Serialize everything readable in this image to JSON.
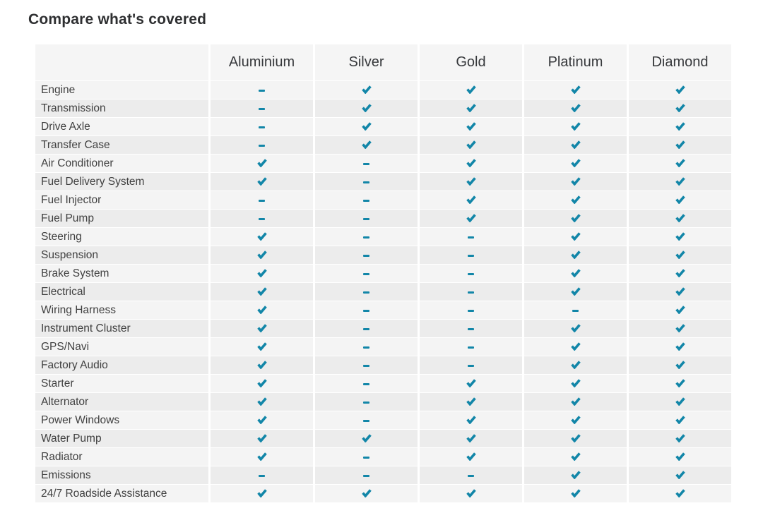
{
  "page": {
    "title": "Compare what's covered"
  },
  "colors": {
    "accent_teal": "#1286a8",
    "row_stripe_light": "#f4f4f4",
    "row_stripe_dark": "#ececec",
    "header_bg": "#f5f5f5",
    "title_text": "#2e2f31",
    "header_text": "#36383b",
    "label_text": "#404040"
  },
  "icons": {
    "covered": "check-icon",
    "not_covered": "dash-icon",
    "covered_glyph": "✔",
    "not_covered_glyph": "-"
  },
  "table": {
    "corner_label": "",
    "plans": [
      "Aluminium",
      "Silver",
      "Gold",
      "Platinum",
      "Diamond"
    ],
    "rows": [
      {
        "label": "Engine",
        "covered": [
          false,
          true,
          true,
          true,
          true
        ]
      },
      {
        "label": "Transmission",
        "covered": [
          false,
          true,
          true,
          true,
          true
        ]
      },
      {
        "label": "Drive Axle",
        "covered": [
          false,
          true,
          true,
          true,
          true
        ]
      },
      {
        "label": "Transfer Case",
        "covered": [
          false,
          true,
          true,
          true,
          true
        ]
      },
      {
        "label": "Air Conditioner",
        "covered": [
          true,
          false,
          true,
          true,
          true
        ]
      },
      {
        "label": "Fuel Delivery System",
        "covered": [
          true,
          false,
          true,
          true,
          true
        ]
      },
      {
        "label": "Fuel Injector",
        "covered": [
          false,
          false,
          true,
          true,
          true
        ]
      },
      {
        "label": "Fuel Pump",
        "covered": [
          false,
          false,
          true,
          true,
          true
        ]
      },
      {
        "label": "Steering",
        "covered": [
          true,
          false,
          false,
          true,
          true
        ]
      },
      {
        "label": "Suspension",
        "covered": [
          true,
          false,
          false,
          true,
          true
        ]
      },
      {
        "label": "Brake System",
        "covered": [
          true,
          false,
          false,
          true,
          true
        ]
      },
      {
        "label": "Electrical",
        "covered": [
          true,
          false,
          false,
          true,
          true
        ]
      },
      {
        "label": "Wiring Harness",
        "covered": [
          true,
          false,
          false,
          false,
          true
        ]
      },
      {
        "label": "Instrument Cluster",
        "covered": [
          true,
          false,
          false,
          true,
          true
        ]
      },
      {
        "label": "GPS/Navi",
        "covered": [
          true,
          false,
          false,
          true,
          true
        ]
      },
      {
        "label": "Factory Audio",
        "covered": [
          true,
          false,
          false,
          true,
          true
        ]
      },
      {
        "label": "Starter",
        "covered": [
          true,
          false,
          true,
          true,
          true
        ]
      },
      {
        "label": "Alternator",
        "covered": [
          true,
          false,
          true,
          true,
          true
        ]
      },
      {
        "label": "Power Windows",
        "covered": [
          true,
          false,
          true,
          true,
          true
        ]
      },
      {
        "label": "Water Pump",
        "covered": [
          true,
          true,
          true,
          true,
          true
        ]
      },
      {
        "label": "Radiator",
        "covered": [
          true,
          false,
          true,
          true,
          true
        ]
      },
      {
        "label": "Emissions",
        "covered": [
          false,
          false,
          false,
          true,
          true
        ]
      },
      {
        "label": "24/7 Roadside Assistance",
        "covered": [
          true,
          true,
          true,
          true,
          true
        ]
      }
    ]
  }
}
